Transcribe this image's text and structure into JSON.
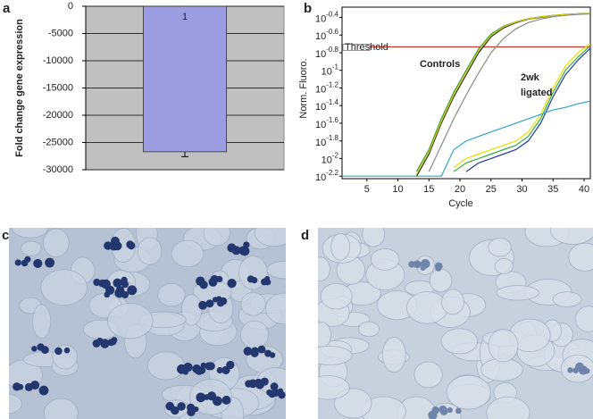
{
  "chart_data": [
    {
      "type": "bar",
      "panel_label": "a",
      "ylabel": "Fold change gene expression",
      "categories": [
        "1"
      ],
      "values": [
        -26700
      ],
      "errors": [
        900
      ],
      "color": "#9c9ce0",
      "ylim": [
        -30000,
        0
      ],
      "yticks": [
        0,
        -5000,
        -10000,
        -15000,
        -20000,
        -25000,
        -30000
      ],
      "grid": true
    },
    {
      "type": "line",
      "panel_label": "b",
      "xlabel": "Cycle",
      "ylabel": "Norm. Fluoro.",
      "log_scale": true,
      "x": [
        1,
        5,
        10,
        13,
        15,
        17,
        19,
        21,
        23,
        25,
        27,
        29,
        31,
        33,
        35,
        37,
        39,
        41
      ],
      "xlim": [
        1,
        41
      ],
      "xticks": [
        5,
        10,
        15,
        20,
        25,
        30,
        35,
        40
      ],
      "ylim": [
        0.0059,
        0.52
      ],
      "yticks": [
        {
          "value": 0.398,
          "label": "10-0.4"
        },
        {
          "value": 0.251,
          "label": "10-0.6"
        },
        {
          "value": 0.158,
          "label": "10-0.8"
        },
        {
          "value": 0.1,
          "label": "10-1"
        },
        {
          "value": 0.0631,
          "label": "10-1.2"
        },
        {
          "value": 0.0398,
          "label": "10-1.4"
        },
        {
          "value": 0.0251,
          "label": "10-1.6"
        },
        {
          "value": 0.0158,
          "label": "10-1.8"
        },
        {
          "value": 0.01,
          "label": "10-2"
        },
        {
          "value": 0.0063,
          "label": "10-2.2"
        }
      ],
      "threshold": {
        "value": 0.184,
        "label": "Threshold",
        "color": "#c0392b"
      },
      "annotations": [
        "Controls",
        "2wk",
        "ligated"
      ],
      "series": [
        {
          "color": "#2e9a2e",
          "values": [
            null,
            null,
            null,
            0.0071,
            0.0126,
            0.0282,
            0.0562,
            0.1,
            0.174,
            0.257,
            0.316,
            0.355,
            0.385,
            0.405,
            0.42,
            0.43,
            0.437,
            0.44
          ]
        },
        {
          "color": "#111111",
          "values": [
            null,
            null,
            null,
            0.0063,
            0.0112,
            0.0251,
            0.0501,
            0.0891,
            0.158,
            0.24,
            0.302,
            0.347,
            0.38,
            0.398,
            0.417,
            0.427,
            0.437,
            0.44
          ]
        },
        {
          "color": "#e6d600",
          "values": [
            null,
            null,
            null,
            0.0066,
            0.0118,
            0.0263,
            0.0525,
            0.0933,
            0.166,
            0.248,
            0.31,
            0.352,
            0.383,
            0.402,
            0.418,
            0.428,
            0.437,
            0.44
          ]
        },
        {
          "color": "#8a8a8a",
          "values": [
            null,
            null,
            null,
            null,
            0.0071,
            0.0141,
            0.0282,
            0.0525,
            0.0933,
            0.158,
            0.229,
            0.295,
            0.347,
            0.38,
            0.405,
            0.42,
            0.43,
            0.437
          ]
        },
        {
          "color": "#e6e000",
          "values": [
            null,
            null,
            null,
            null,
            null,
            null,
            0.0079,
            0.01,
            0.0112,
            0.0126,
            0.0141,
            0.0158,
            0.02,
            0.0316,
            0.0631,
            0.112,
            0.158,
            0.2
          ]
        },
        {
          "color": "#3aaa3a",
          "values": [
            null,
            null,
            null,
            null,
            null,
            null,
            0.0071,
            0.0089,
            0.01,
            0.0112,
            0.0126,
            0.0141,
            0.0178,
            0.0282,
            0.0562,
            0.1,
            0.141,
            0.19
          ]
        },
        {
          "color": "#1c3a9c",
          "values": [
            null,
            null,
            null,
            null,
            null,
            null,
            null,
            0.0071,
            0.0089,
            0.01,
            0.0112,
            0.0126,
            0.0158,
            0.0251,
            0.0501,
            0.0891,
            0.13,
            0.178
          ]
        },
        {
          "color": "#2fa6c8",
          "values": [
            0.0063,
            0.0063,
            0.0063,
            0.0063,
            0.0063,
            0.0063,
            0.0126,
            0.0158,
            0.0178,
            0.02,
            0.0224,
            0.0251,
            0.0282,
            0.0316,
            0.0355,
            0.038,
            0.0417,
            0.0447
          ]
        }
      ]
    }
  ],
  "images": [
    {
      "panel_label": "c"
    },
    {
      "panel_label": "d"
    }
  ]
}
